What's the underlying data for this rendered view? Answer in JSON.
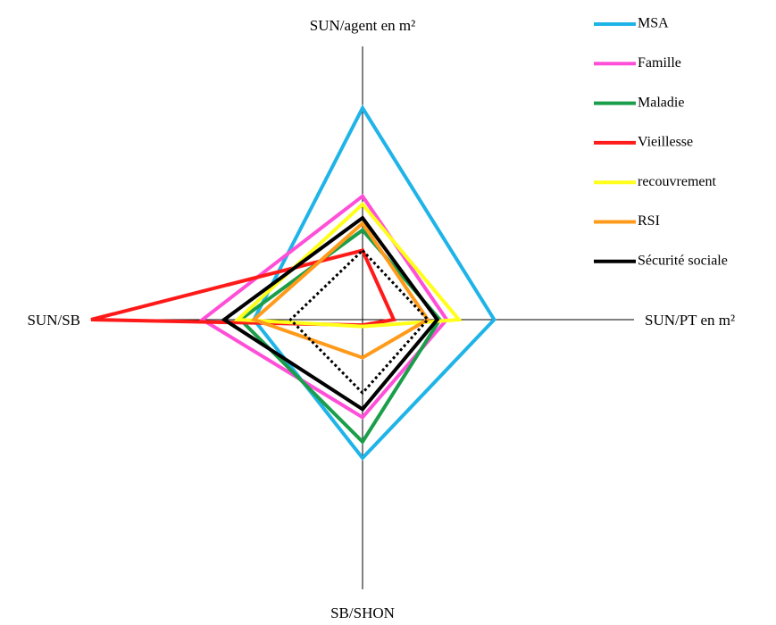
{
  "chart_data": {
    "type": "radar",
    "axes": [
      "SUN/agent en m²",
      "SUN/PT en m²",
      "SB/SHON",
      "SUN/SB"
    ],
    "rlim": [
      0,
      100
    ],
    "series": [
      {
        "name": "MSA",
        "color": "#1fb4e8",
        "values": [
          78,
          48.5,
          51,
          40
        ]
      },
      {
        "name": "Famille",
        "color": "#ff4fd8",
        "values": [
          45.5,
          31,
          36,
          59
        ]
      },
      {
        "name": "Maladie",
        "color": "#1a9e4a",
        "values": [
          33,
          28.5,
          45,
          45
        ]
      },
      {
        "name": "Vieillesse",
        "color": "#ff1a1a",
        "values": [
          25.5,
          11.5,
          2,
          100
        ]
      },
      {
        "name": "recouvrement",
        "color": "#ffff1a",
        "values": [
          42.5,
          35.5,
          2.5,
          46
        ]
      },
      {
        "name": "RSI",
        "color": "#ff9a1a",
        "values": [
          35.5,
          24,
          14,
          40
        ]
      },
      {
        "name": "Sécurité sociale",
        "color": "#000000",
        "values": [
          37.5,
          27.5,
          33,
          51
        ]
      },
      {
        "color": "#000000",
        "dashed": true,
        "values": [
          25.5,
          24,
          27,
          26.5
        ]
      }
    ],
    "legend": "top-right"
  }
}
